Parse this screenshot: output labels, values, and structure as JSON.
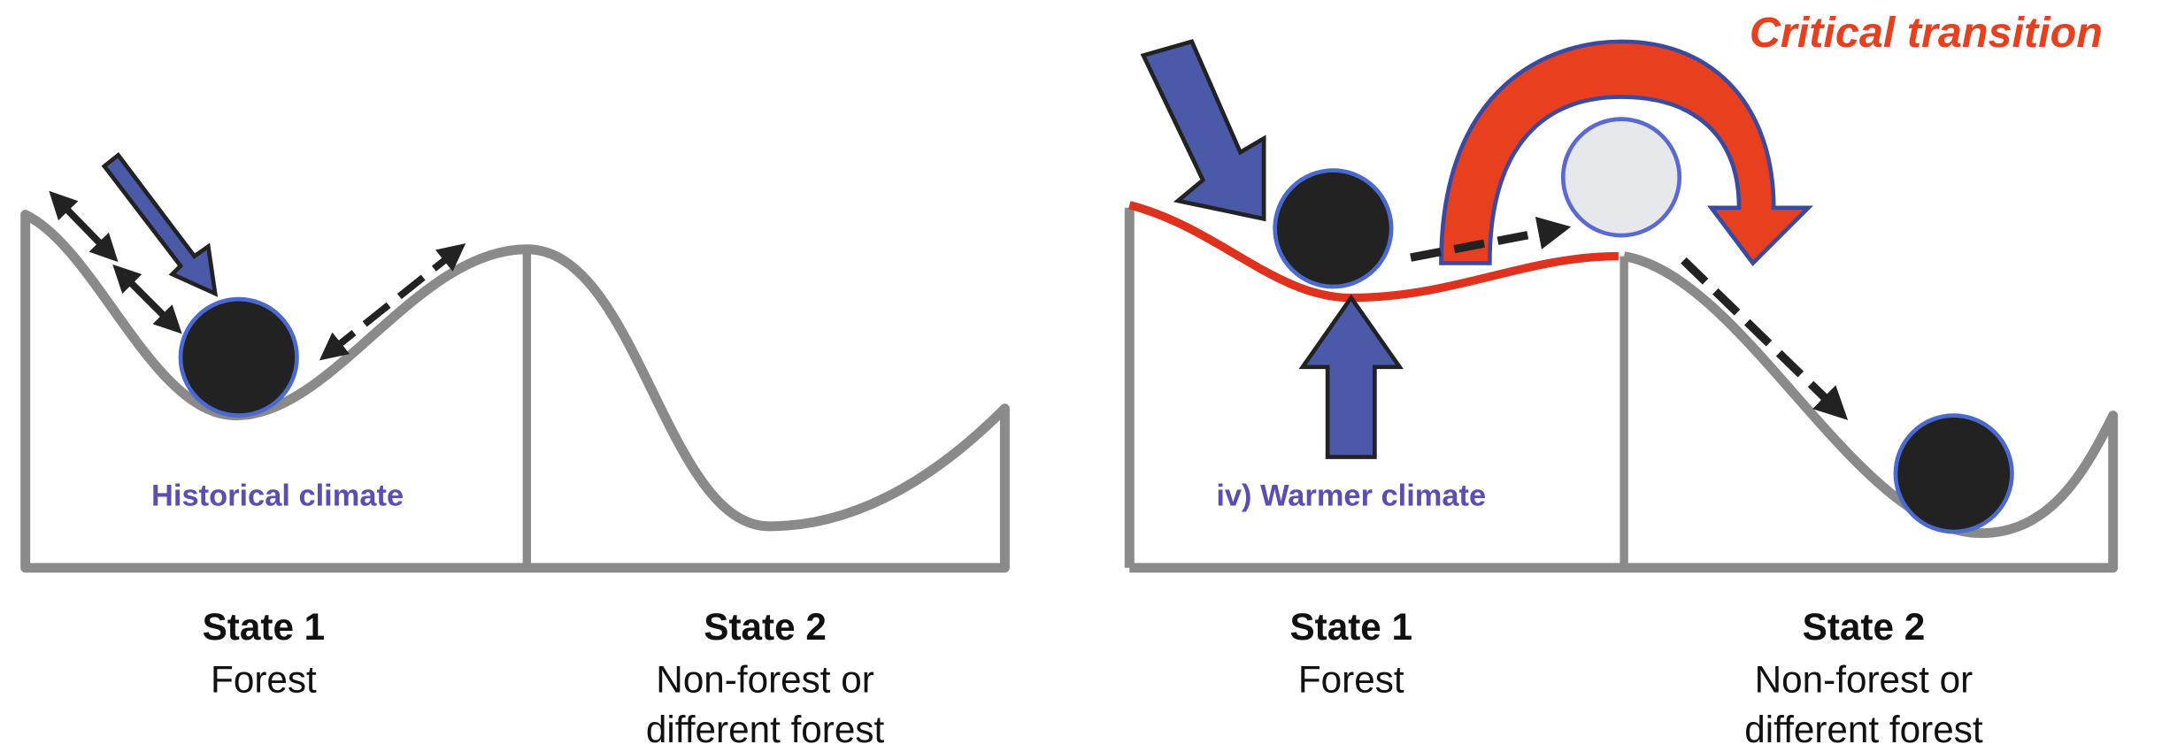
{
  "panels": [
    {
      "climate_label": "Historical climate",
      "states": [
        {
          "name": "State 1",
          "description": [
            "Forest"
          ]
        },
        {
          "name": "State 2",
          "description": [
            "Non-forest or",
            "different forest"
          ]
        }
      ]
    },
    {
      "title": "Critical transition",
      "climate_label": "iv) Warmer climate",
      "states": [
        {
          "name": "State 1",
          "description": [
            "Forest"
          ]
        },
        {
          "name": "State 2",
          "description": [
            "Non-forest or",
            "different forest"
          ]
        }
      ]
    }
  ]
}
